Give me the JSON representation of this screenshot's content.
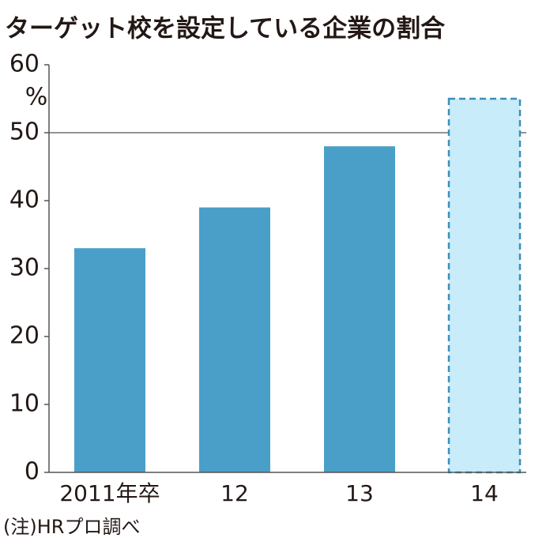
{
  "chart_data": {
    "type": "bar",
    "title": "ターゲット校を設定している企業の割合",
    "ylabel": "%",
    "categories": [
      "2011年卒",
      "12",
      "13",
      "14"
    ],
    "values": [
      33,
      39,
      48,
      55
    ],
    "colors": [
      "#4a9fc8",
      "#4a9fc8",
      "#4a9fc8",
      "#c8ecfa"
    ],
    "dashed": [
      false,
      false,
      false,
      true
    ],
    "ylim": [
      0,
      60
    ],
    "yticks": [
      0,
      10,
      20,
      30,
      40,
      50,
      60
    ],
    "grid_at": [
      50
    ],
    "note": "(注)HRプロ調べ"
  }
}
